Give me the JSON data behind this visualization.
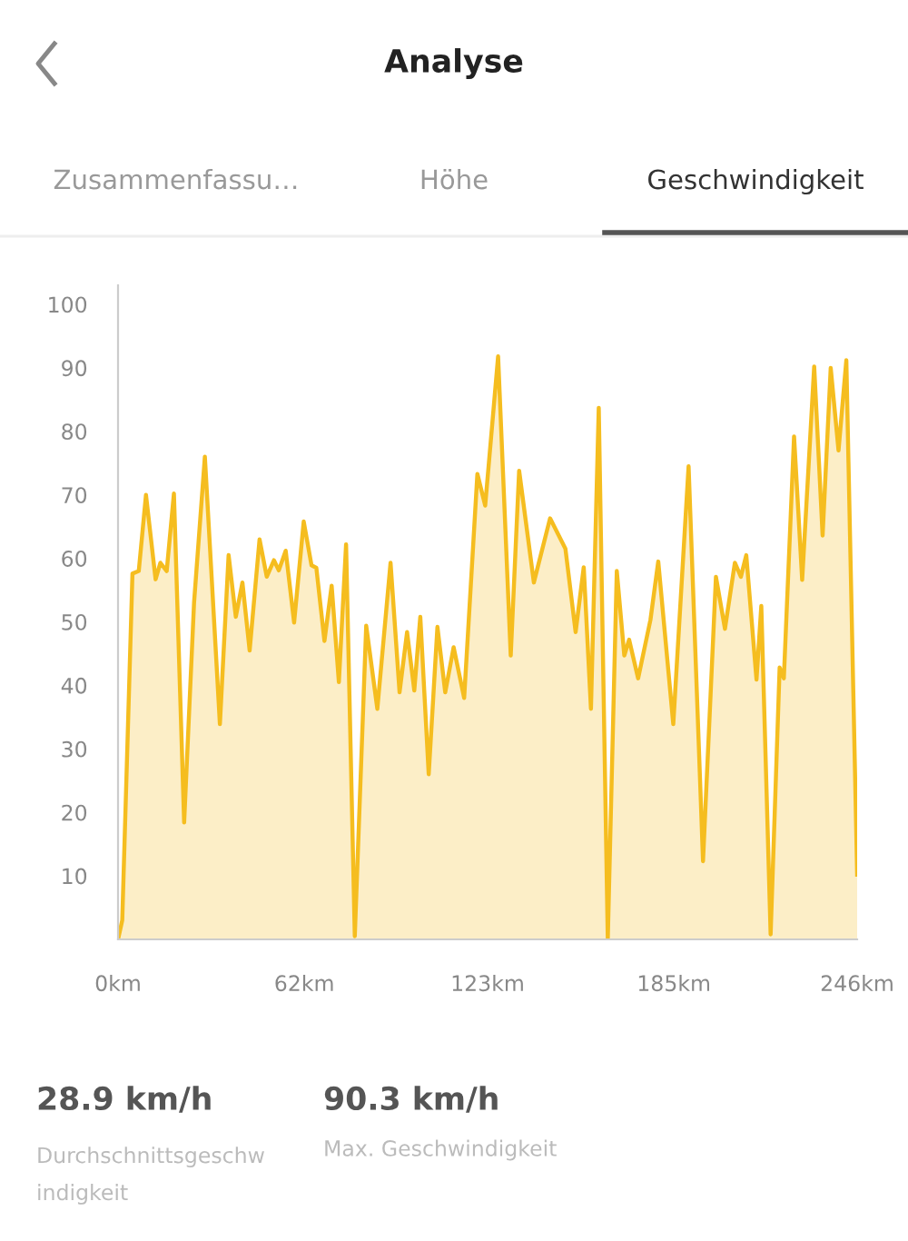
{
  "chart_data": {
    "type": "area",
    "title": "Analyse",
    "annotations": [
      "Zusammenfassu…",
      "Höhe",
      "Geschwindigkeit",
      "28.9 km/h",
      "Durchschnittsgeschw\nindigkeit",
      "90.3 km/h",
      "Max. Geschwindigkeit"
    ],
    "x": [
      0,
      1.4,
      4.8,
      6.9,
      9.3,
      12.5,
      14.1,
      16.2,
      18.6,
      22,
      25.3,
      28.9,
      33.9,
      36.8,
      39.2,
      41.4,
      43.8,
      47.1,
      49.5,
      51.9,
      53.5,
      55.8,
      58.6,
      61.8,
      64.4,
      66,
      68.7,
      71.1,
      73.5,
      75.9,
      78.8,
      82.6,
      86.3,
      90.7,
      93.7,
      96.2,
      98.6,
      100.6,
      103.4,
      106.3,
      108.9,
      111.7,
      115.2,
      119.6,
      122.2,
      126.5,
      130.7,
      133.5,
      138.4,
      143.8,
      148.9,
      152.3,
      155,
      157.4,
      160,
      163,
      166,
      168.5,
      170.1,
      173.1,
      177.2,
      179.8,
      184.8,
      189.9,
      194.7,
      199,
      202,
      205.3,
      207.3,
      209.1,
      212.5,
      214.1,
      217.2,
      220.2,
      221.6,
      225,
      227.7,
      231.7,
      234.5,
      237.2,
      239.8,
      242.4,
      246
    ],
    "series": [
      {
        "color": "#f5bd1f",
        "values": [
          0,
          3,
          57.6,
          58,
          70,
          56.7,
          59.3,
          58,
          70.2,
          18.4,
          53,
          76,
          33.9,
          60.5,
          50.8,
          56.2,
          45.5,
          63,
          57.1,
          59.7,
          58.1,
          61.2,
          49.9,
          65.8,
          58.9,
          58.5,
          47,
          55.7,
          40.5,
          62.2,
          0.5,
          49.4,
          36.3,
          59.3,
          38.9,
          48.4,
          39.2,
          50.8,
          26,
          49.2,
          38.9,
          46,
          38,
          73.3,
          68.3,
          91.8,
          44.7,
          73.8,
          56.2,
          66.3,
          61.5,
          48.4,
          58.6,
          36.3,
          83.7,
          0,
          58,
          44.7,
          47.2,
          41.1,
          50.3,
          59.5,
          33.9,
          74.5,
          12.3,
          57.1,
          48.9,
          59.3,
          57.1,
          60.5,
          40.9,
          52.5,
          0.8,
          42.8,
          41.1,
          79.2,
          56.6,
          90.2,
          63.6,
          90,
          77,
          91.2,
          10.2
        ]
      }
    ],
    "xlim": [
      0,
      246
    ],
    "ylim": [
      0,
      103
    ],
    "xticks": [
      {
        "value": 0,
        "label": "0km"
      },
      {
        "value": 62,
        "label": "62km"
      },
      {
        "value": 123,
        "label": "123km"
      },
      {
        "value": 185,
        "label": "185km"
      },
      {
        "value": 246,
        "label": "246km"
      }
    ],
    "yticks": [
      10,
      20,
      30,
      40,
      50,
      60,
      70,
      80,
      90,
      100
    ],
    "grid": false,
    "legend": false
  }
}
